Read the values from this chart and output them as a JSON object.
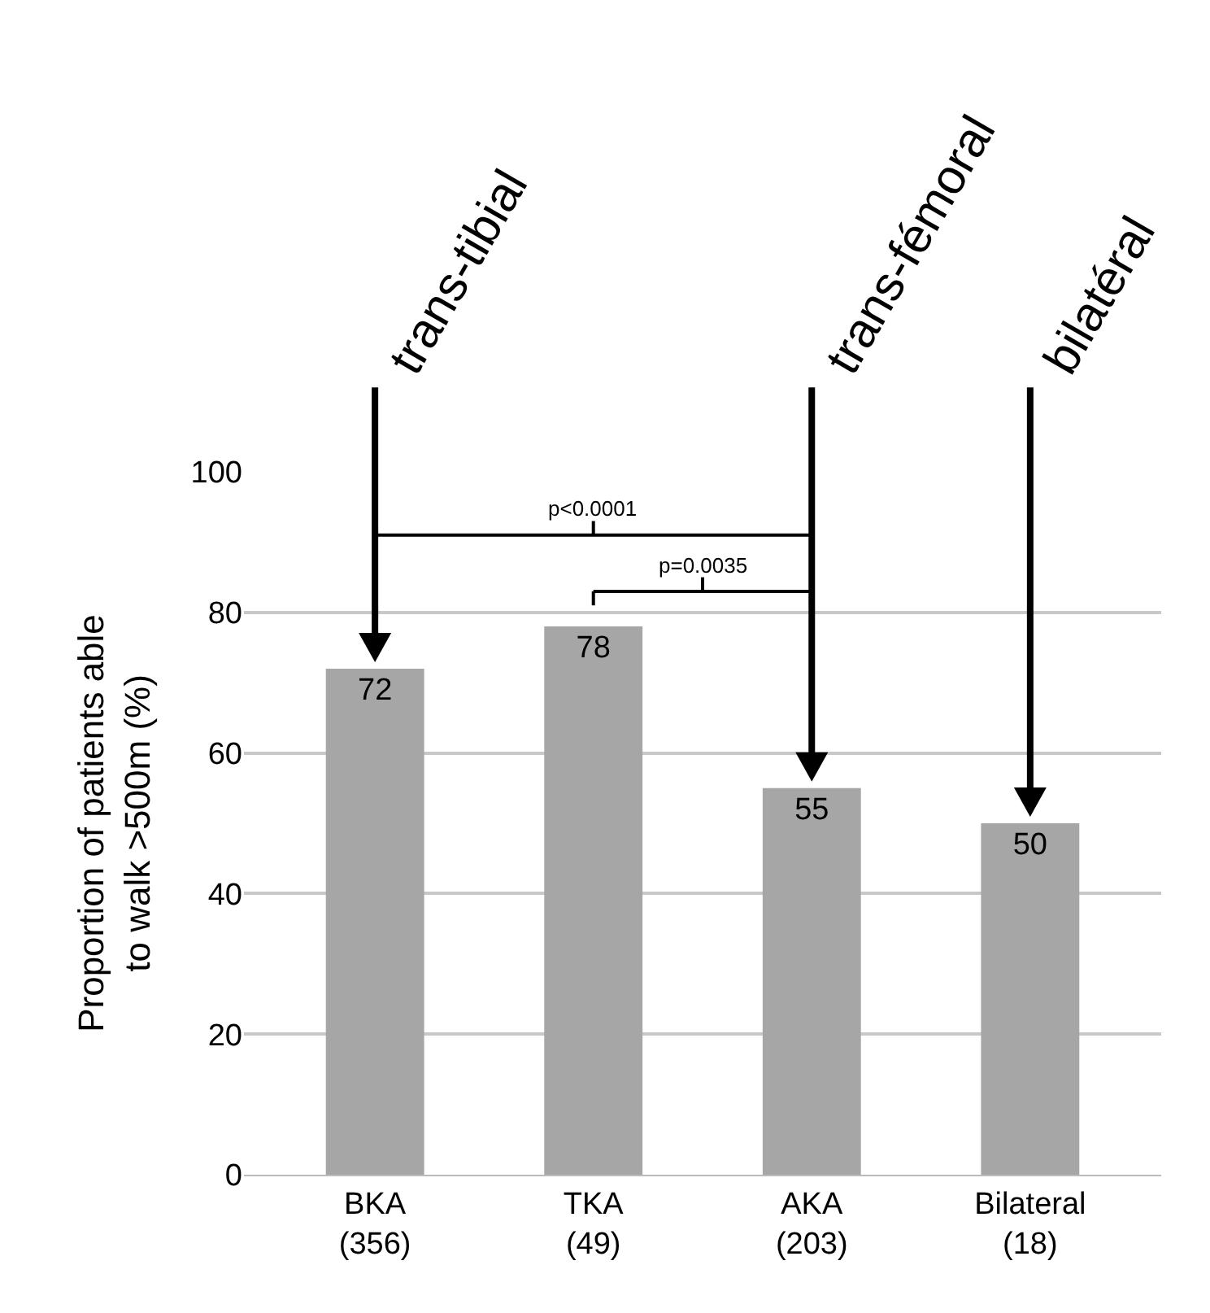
{
  "chart_data": {
    "type": "bar",
    "categories": [
      "BKA\n(356)",
      "TKA\n(49)",
      "AKA\n(203)",
      "Bilateral\n(18)"
    ],
    "values": [
      72,
      78,
      55,
      50
    ],
    "color": "#a6a6a6",
    "data_labels": true,
    "ylabel": "Proportion of patients able\nto walk >500m (%)",
    "ylim": [
      0,
      100
    ],
    "yticks": [
      0,
      20,
      40,
      60,
      80,
      100
    ],
    "grid": "y",
    "legend": false,
    "annotations": [
      "trans-tibial",
      "trans-fémoral",
      "bilatéral",
      "p<0.0001",
      "p=0.0035"
    ]
  }
}
